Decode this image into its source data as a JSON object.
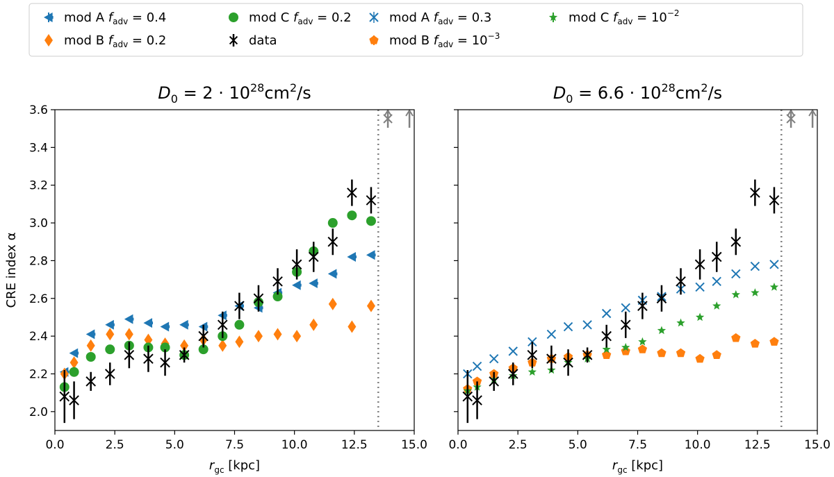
{
  "legend": {
    "location": "top, spanning both panels",
    "entries": [
      {
        "key": "modA_f04",
        "label": "mod A",
        "sym": "f",
        "sub": "adv",
        "rest": " = 0.4",
        "sup": "",
        "color": "#1f77b4",
        "marker": "triangle-left"
      },
      {
        "key": "modB_f02",
        "label": "mod B",
        "sym": "f",
        "sub": "adv",
        "rest": " = 0.2",
        "sup": "",
        "color": "#ff7f0e",
        "marker": "diamond"
      },
      {
        "key": "modC_f02",
        "label": "mod C",
        "sym": "f",
        "sub": "adv",
        "rest": " = 0.2",
        "sup": "",
        "color": "#2ca02c",
        "marker": "circle"
      },
      {
        "key": "data",
        "label": "data",
        "sym": "",
        "sub": "",
        "rest": "",
        "sup": "",
        "color": "#000000",
        "marker": "x-bar"
      },
      {
        "key": "modA_f03",
        "label": "mod A",
        "sym": "f",
        "sub": "adv",
        "rest": " = 0.3",
        "sup": "",
        "color": "#1f77b4",
        "marker": "x"
      },
      {
        "key": "modB_f1e3",
        "label": "mod B",
        "sym": "f",
        "sub": "adv",
        "rest": " = 10",
        "sup": "−3",
        "color": "#ff7f0e",
        "marker": "pentagon"
      },
      {
        "key": "modC_f1e2",
        "label": "mod C",
        "sym": "f",
        "sub": "adv",
        "rest": " = 10",
        "sup": "−2",
        "color": "#2ca02c",
        "marker": "star"
      }
    ]
  },
  "chart_data": [
    {
      "type": "scatter",
      "title_parts": {
        "sym": "D",
        "sub": "0",
        "mid": " = 2 · 10",
        "sup": "28",
        "unit": "cm",
        "unit_sup": "2",
        "tail": "/s"
      },
      "xlabel": {
        "sym": "r",
        "sub": "gc",
        "rest": " [kpc]"
      },
      "ylabel": "CRE index α",
      "xlim": [
        0,
        15
      ],
      "ylim": [
        1.9,
        3.6
      ],
      "xticks": [
        "0.0",
        "2.5",
        "5.0",
        "7.5",
        "10.0",
        "12.5",
        "15.0"
      ],
      "yticks": [
        "2.0",
        "2.2",
        "2.4",
        "2.6",
        "2.8",
        "3.0",
        "3.2",
        "3.4",
        "3.6"
      ],
      "show_yticklabels": true,
      "vline_x": 13.5,
      "upper_limit_arrows": [
        {
          "x": 13.9,
          "marker": "x-bar"
        },
        {
          "x": 14.8,
          "marker": "bar"
        }
      ],
      "series": [
        {
          "key": "modA_f04",
          "name": "mod A f_adv = 0.4",
          "x": [
            0.4,
            0.8,
            1.5,
            2.3,
            3.1,
            3.9,
            4.6,
            5.4,
            6.2,
            7.0,
            7.7,
            8.5,
            9.3,
            10.1,
            10.8,
            11.6,
            12.4,
            13.2
          ],
          "y": [
            2.21,
            2.31,
            2.41,
            2.46,
            2.49,
            2.47,
            2.45,
            2.46,
            2.45,
            2.51,
            2.56,
            2.55,
            2.63,
            2.67,
            2.68,
            2.73,
            2.82,
            2.83
          ]
        },
        {
          "key": "modB_f02",
          "name": "mod B f_adv = 0.2",
          "x": [
            0.4,
            0.8,
            1.5,
            2.3,
            3.1,
            3.9,
            4.6,
            5.4,
            6.2,
            7.0,
            7.7,
            8.5,
            9.3,
            10.1,
            10.8,
            11.6,
            12.4,
            13.2
          ],
          "y": [
            2.2,
            2.26,
            2.35,
            2.41,
            2.41,
            2.38,
            2.36,
            2.35,
            2.38,
            2.35,
            2.37,
            2.4,
            2.41,
            2.4,
            2.46,
            2.57,
            2.45,
            2.56
          ]
        },
        {
          "key": "modC_f02",
          "name": "mod C f_adv = 0.2",
          "x": [
            0.4,
            0.8,
            1.5,
            2.3,
            3.1,
            3.9,
            4.6,
            5.4,
            6.2,
            7.0,
            7.7,
            8.5,
            9.3,
            10.1,
            10.8,
            11.6,
            12.4,
            13.2
          ],
          "y": [
            2.13,
            2.21,
            2.29,
            2.33,
            2.35,
            2.34,
            2.34,
            2.3,
            2.33,
            2.4,
            2.46,
            2.58,
            2.61,
            2.74,
            2.85,
            3.0,
            3.04,
            3.01
          ]
        },
        {
          "key": "data",
          "name": "data",
          "x": [
            0.4,
            0.8,
            1.5,
            2.3,
            3.1,
            3.9,
            4.6,
            5.4,
            6.2,
            7.0,
            7.7,
            8.5,
            9.3,
            10.1,
            10.8,
            11.6,
            12.4,
            13.2
          ],
          "y": [
            2.08,
            2.06,
            2.16,
            2.2,
            2.3,
            2.28,
            2.26,
            2.3,
            2.4,
            2.46,
            2.56,
            2.6,
            2.69,
            2.78,
            2.82,
            2.9,
            3.16,
            3.12
          ],
          "yerr": [
            0.14,
            0.1,
            0.05,
            0.06,
            0.07,
            0.07,
            0.07,
            0.04,
            0.06,
            0.07,
            0.07,
            0.07,
            0.07,
            0.08,
            0.08,
            0.07,
            0.07,
            0.07
          ]
        }
      ]
    },
    {
      "type": "scatter",
      "title_parts": {
        "sym": "D",
        "sub": "0",
        "mid": " = 6.6 · 10",
        "sup": "28",
        "unit": "cm",
        "unit_sup": "2",
        "tail": "/s"
      },
      "xlabel": {
        "sym": "r",
        "sub": "gc",
        "rest": " [kpc]"
      },
      "ylabel": "",
      "xlim": [
        0,
        15
      ],
      "ylim": [
        1.9,
        3.6
      ],
      "xticks": [
        "0.0",
        "2.5",
        "5.0",
        "7.5",
        "10.0",
        "12.5",
        "15.0"
      ],
      "yticks": [
        "2.0",
        "2.2",
        "2.4",
        "2.6",
        "2.8",
        "3.0",
        "3.2",
        "3.4",
        "3.6"
      ],
      "show_yticklabels": false,
      "vline_x": 13.5,
      "upper_limit_arrows": [
        {
          "x": 13.9,
          "marker": "x-bar"
        },
        {
          "x": 14.8,
          "marker": "bar"
        }
      ],
      "series": [
        {
          "key": "modA_f03",
          "name": "mod A f_adv = 0.3",
          "x": [
            0.4,
            0.8,
            1.5,
            2.3,
            3.1,
            3.9,
            4.6,
            5.4,
            6.2,
            7.0,
            7.7,
            8.5,
            9.3,
            10.1,
            10.8,
            11.6,
            12.4,
            13.2
          ],
          "y": [
            2.2,
            2.24,
            2.28,
            2.32,
            2.37,
            2.41,
            2.45,
            2.46,
            2.52,
            2.55,
            2.59,
            2.61,
            2.65,
            2.66,
            2.69,
            2.73,
            2.77,
            2.78
          ]
        },
        {
          "key": "modB_f1e3",
          "name": "mod B f_adv = 10^-3",
          "x": [
            0.4,
            0.8,
            1.5,
            2.3,
            3.1,
            3.9,
            4.6,
            5.4,
            6.2,
            7.0,
            7.7,
            8.5,
            9.3,
            10.1,
            10.8,
            11.6,
            12.4,
            13.2
          ],
          "y": [
            2.12,
            2.16,
            2.2,
            2.23,
            2.26,
            2.28,
            2.29,
            2.3,
            2.3,
            2.32,
            2.33,
            2.31,
            2.31,
            2.28,
            2.3,
            2.39,
            2.36,
            2.37
          ]
        },
        {
          "key": "modC_f1e2",
          "name": "mod C f_adv = 10^-2",
          "x": [
            0.4,
            0.8,
            1.5,
            2.3,
            3.1,
            3.9,
            4.6,
            5.4,
            6.2,
            7.0,
            7.7,
            8.5,
            9.3,
            10.1,
            10.8,
            11.6,
            12.4,
            13.2
          ],
          "y": [
            2.11,
            2.13,
            2.17,
            2.19,
            2.21,
            2.22,
            2.26,
            2.28,
            2.33,
            2.34,
            2.37,
            2.43,
            2.47,
            2.5,
            2.56,
            2.62,
            2.63,
            2.66
          ]
        },
        {
          "key": "data",
          "name": "data",
          "x": [
            0.4,
            0.8,
            1.5,
            2.3,
            3.1,
            3.9,
            4.6,
            5.4,
            6.2,
            7.0,
            7.7,
            8.5,
            9.3,
            10.1,
            10.8,
            11.6,
            12.4,
            13.2
          ],
          "y": [
            2.08,
            2.06,
            2.16,
            2.2,
            2.3,
            2.28,
            2.26,
            2.3,
            2.4,
            2.46,
            2.56,
            2.6,
            2.69,
            2.78,
            2.82,
            2.9,
            3.16,
            3.12
          ],
          "yerr": [
            0.14,
            0.1,
            0.05,
            0.06,
            0.07,
            0.07,
            0.07,
            0.04,
            0.06,
            0.07,
            0.07,
            0.07,
            0.07,
            0.08,
            0.08,
            0.07,
            0.07,
            0.07
          ]
        }
      ]
    }
  ]
}
